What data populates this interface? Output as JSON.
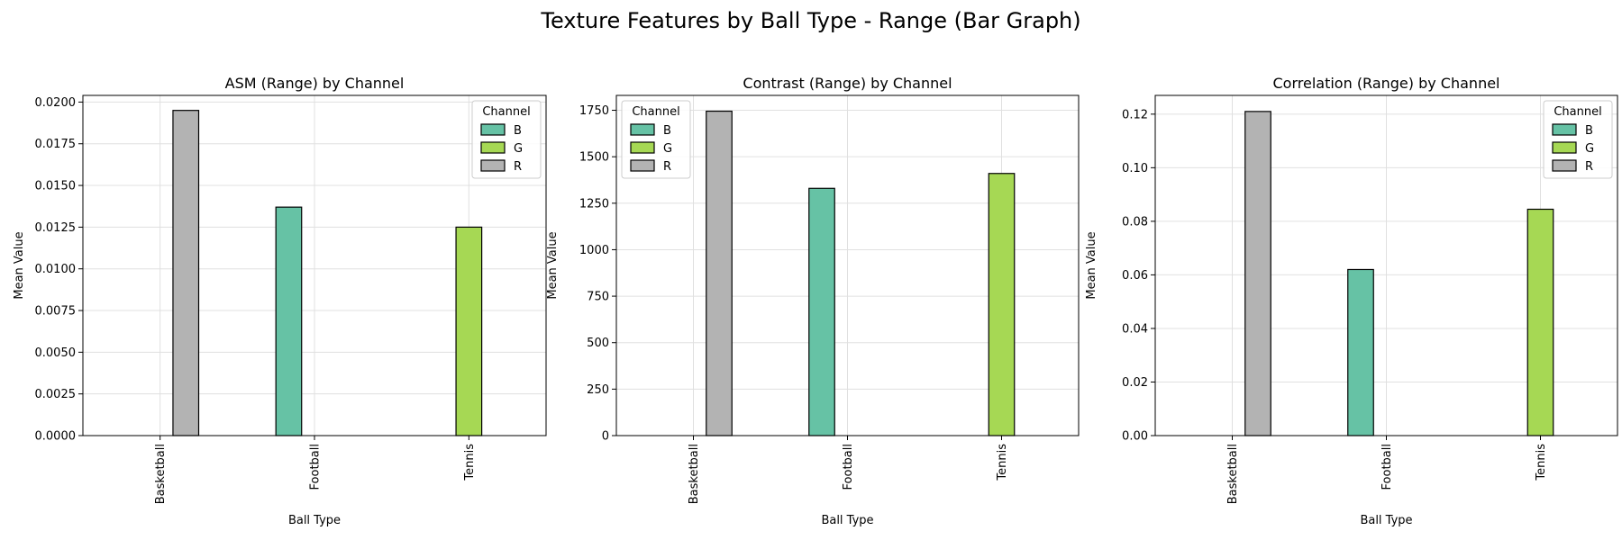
{
  "figure": {
    "title": "Texture Features by Ball Type - Range (Bar Graph)"
  },
  "chart_data": [
    {
      "type": "bar",
      "title": "ASM (Range) by Channel",
      "xlabel": "Ball Type",
      "ylabel": "Mean Value",
      "categories": [
        "Basketball",
        "Football",
        "Tennis"
      ],
      "ylim": [
        0,
        0.0204
      ],
      "yticks": [
        "0.0000",
        "0.0025",
        "0.0050",
        "0.0075",
        "0.0100",
        "0.0125",
        "0.0150",
        "0.0175",
        "0.0200"
      ],
      "grid": true,
      "legend": {
        "title": "Channel",
        "position": "top-right"
      },
      "series": [
        {
          "name": "B",
          "color": "#66c2a5",
          "values": [
            0,
            0.0137,
            0
          ]
        },
        {
          "name": "G",
          "color": "#a6d854",
          "values": [
            0,
            0,
            0.0125
          ]
        },
        {
          "name": "R",
          "color": "#b3b3b3",
          "values": [
            0.0195,
            0,
            0
          ]
        }
      ]
    },
    {
      "type": "bar",
      "title": "Contrast (Range) by Channel",
      "xlabel": "Ball Type",
      "ylabel": "Mean Value",
      "categories": [
        "Basketball",
        "Football",
        "Tennis"
      ],
      "ylim": [
        0,
        1830
      ],
      "yticks": [
        "0",
        "250",
        "500",
        "750",
        "1000",
        "1250",
        "1500",
        "1750"
      ],
      "grid": true,
      "legend": {
        "title": "Channel",
        "position": "top-left"
      },
      "series": [
        {
          "name": "B",
          "color": "#66c2a5",
          "values": [
            0,
            1330,
            0
          ]
        },
        {
          "name": "G",
          "color": "#a6d854",
          "values": [
            0,
            0,
            1410
          ]
        },
        {
          "name": "R",
          "color": "#b3b3b3",
          "values": [
            1745,
            0,
            0
          ]
        }
      ]
    },
    {
      "type": "bar",
      "title": "Correlation (Range) by Channel",
      "xlabel": "Ball Type",
      "ylabel": "Mean Value",
      "categories": [
        "Basketball",
        "Football",
        "Tennis"
      ],
      "ylim": [
        0,
        0.127
      ],
      "yticks": [
        "0.00",
        "0.02",
        "0.04",
        "0.06",
        "0.08",
        "0.10",
        "0.12"
      ],
      "grid": true,
      "legend": {
        "title": "Channel",
        "position": "top-right"
      },
      "series": [
        {
          "name": "B",
          "color": "#66c2a5",
          "values": [
            0,
            0.062,
            0
          ]
        },
        {
          "name": "G",
          "color": "#a6d854",
          "values": [
            0,
            0,
            0.0845
          ]
        },
        {
          "name": "R",
          "color": "#b3b3b3",
          "values": [
            0.121,
            0,
            0
          ]
        }
      ]
    }
  ]
}
